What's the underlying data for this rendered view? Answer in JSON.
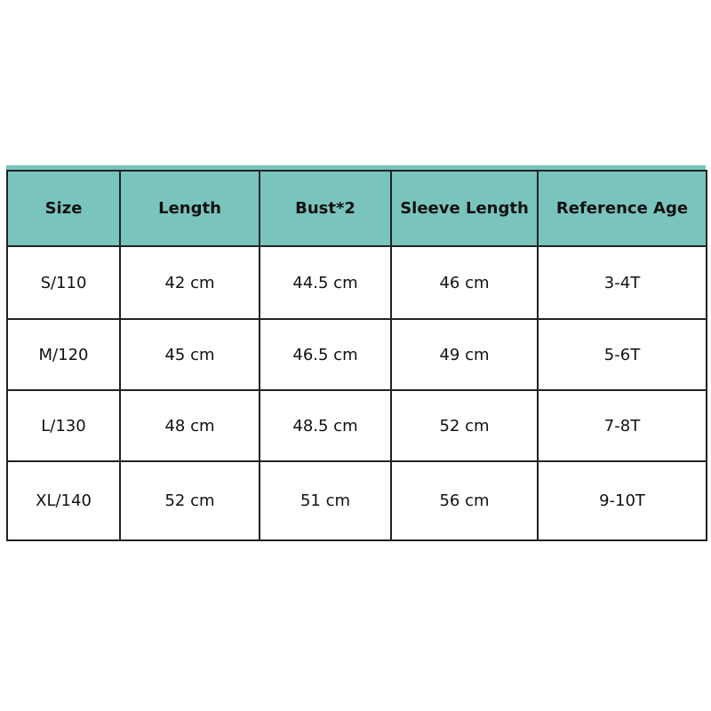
{
  "header_color": "#79c4bd",
  "table": {
    "headers": [
      "Size",
      "Length",
      "Bust*2",
      "Sleeve Length",
      "Reference Age"
    ],
    "rows": [
      [
        "S/110",
        "42 cm",
        "44.5 cm",
        "46 cm",
        "3-4T"
      ],
      [
        "M/120",
        "45 cm",
        "46.5 cm",
        "49 cm",
        "5-6T"
      ],
      [
        "L/130",
        "48 cm",
        "48.5 cm",
        "52 cm",
        "7-8T"
      ],
      [
        "XL/140",
        "52 cm",
        "51 cm",
        "56 cm",
        "9-10T"
      ]
    ]
  }
}
